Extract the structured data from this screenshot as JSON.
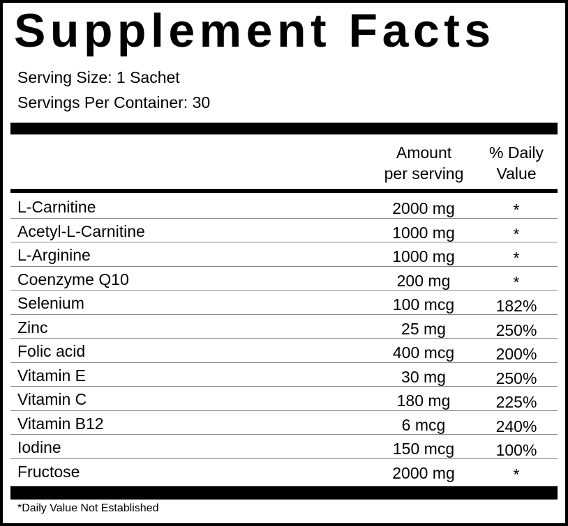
{
  "title": "Supplement Facts",
  "serving_size": "Serving Size: 1 Sachet",
  "servings_per_container": "Servings Per Container: 30",
  "header": {
    "amount": "Amount\nper serving",
    "daily_value": "% Daily\nValue"
  },
  "rows": [
    {
      "name": "L-Carnitine",
      "amount": "2000 mg",
      "dv": "*"
    },
    {
      "name": "Acetyl-L-Carnitine",
      "amount": "1000 mg",
      "dv": "*"
    },
    {
      "name": "L-Arginine",
      "amount": "1000 mg",
      "dv": "*"
    },
    {
      "name": "Coenzyme Q10",
      "amount": "200 mg",
      "dv": "*"
    },
    {
      "name": "Selenium",
      "amount": "100 mcg",
      "dv": "182%"
    },
    {
      "name": "Zinc",
      "amount": "25 mg",
      "dv": "250%"
    },
    {
      "name": "Folic acid",
      "amount": "400 mcg",
      "dv": "200%"
    },
    {
      "name": "Vitamin E",
      "amount": "30 mg",
      "dv": "250%"
    },
    {
      "name": "Vitamin C",
      "amount": "180 mg",
      "dv": "225%"
    },
    {
      "name": "Vitamin B12",
      "amount": "6 mcg",
      "dv": "240%"
    },
    {
      "name": "Iodine",
      "amount": "150 mcg",
      "dv": "100%"
    },
    {
      "name": "Fructose",
      "amount": "2000 mg",
      "dv": "*"
    }
  ],
  "footnote": "*Daily Value Not Established"
}
